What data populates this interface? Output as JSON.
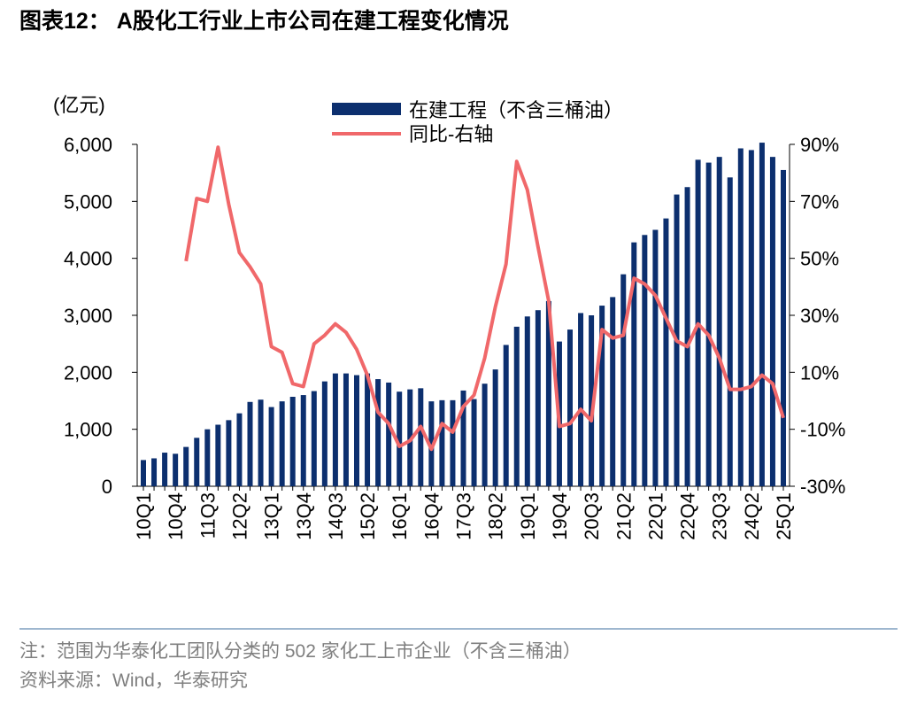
{
  "chart_data": {
    "type": "bar_line",
    "title": "图表12： A股化工行业上市公司在建工程变化情况",
    "y_label": "(亿元)",
    "categories": [
      "10Q1",
      null,
      null,
      "10Q4",
      null,
      null,
      "11Q3",
      null,
      null,
      "12Q2",
      null,
      null,
      "13Q1",
      null,
      null,
      "13Q4",
      null,
      null,
      "14Q3",
      null,
      null,
      "15Q2",
      null,
      null,
      "16Q1",
      null,
      null,
      "16Q4",
      null,
      null,
      "17Q3",
      null,
      null,
      "18Q2",
      null,
      null,
      "19Q1",
      null,
      null,
      "19Q4",
      null,
      null,
      "20Q3",
      null,
      null,
      "21Q2",
      null,
      null,
      "22Q1",
      null,
      null,
      "22Q4",
      null,
      null,
      "23Q3",
      null,
      null,
      "24Q2",
      null,
      null,
      "25Q1"
    ],
    "series": [
      {
        "name": "在建工程（不含三桶油）",
        "color": "#0c2f6e",
        "type": "bar",
        "values": [
          460,
          490,
          590,
          570,
          690,
          850,
          1000,
          1080,
          1160,
          1280,
          1480,
          1520,
          1390,
          1490,
          1570,
          1600,
          1670,
          1840,
          1980,
          1980,
          1950,
          1980,
          1880,
          1820,
          1660,
          1700,
          1720,
          1490,
          1510,
          1510,
          1680,
          1530,
          1800,
          2050,
          2480,
          2800,
          2980,
          3090,
          3250,
          2540,
          2750,
          3040,
          3000,
          3170,
          3320,
          3720,
          4280,
          4410,
          4500,
          4700,
          5120,
          5250,
          5730,
          5680,
          5780,
          5420,
          5930,
          5900,
          6030,
          5780,
          5550
        ]
      },
      {
        "name": "同比-右轴",
        "color": "#f0686a",
        "type": "line",
        "axis": "y2",
        "values": [
          null,
          null,
          null,
          null,
          49,
          71,
          70,
          89,
          69,
          52,
          47,
          41,
          19,
          17,
          6,
          5,
          20,
          23,
          27,
          24,
          18,
          9,
          -4,
          -8,
          -16,
          -14,
          -9,
          -17,
          -8,
          -11,
          -2,
          2,
          15,
          33,
          48,
          84,
          74,
          54,
          35,
          -9,
          -8,
          -3,
          -7,
          25,
          22,
          23,
          43,
          41,
          37,
          29,
          21,
          19,
          27,
          23,
          15,
          4,
          4,
          5,
          9,
          6,
          -6
        ]
      }
    ],
    "ylim": [
      0,
      6000
    ],
    "yticks": [
      0,
      {
        "value": 1000,
        "label": "1,000"
      },
      {
        "value": 2000,
        "label": "2,000"
      },
      {
        "value": 3000,
        "label": "3,000"
      },
      {
        "value": 4000,
        "label": "4,000"
      },
      {
        "value": 5000,
        "label": "5,000"
      },
      {
        "value": 6000,
        "label": "6,000"
      }
    ],
    "y2lim": [
      -30,
      90
    ],
    "y2ticks": [
      {
        "value": -30,
        "label": "-30%"
      },
      {
        "value": -10,
        "label": "-10%"
      },
      {
        "value": 10,
        "label": "10%"
      },
      {
        "value": 30,
        "label": "30%"
      },
      {
        "value": 50,
        "label": "50%"
      },
      {
        "value": 70,
        "label": "70%"
      },
      {
        "value": 90,
        "label": "90%"
      }
    ],
    "notes": [
      "注：范围为华泰化工团队分类的 502 家化工上市企业（不含三桶油）",
      "资料来源：Wind，华泰研究"
    ]
  }
}
